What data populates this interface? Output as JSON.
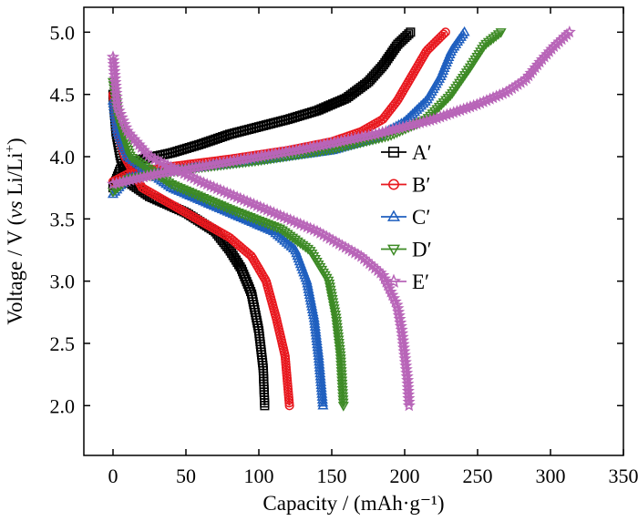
{
  "chart_data": {
    "type": "line",
    "title": "",
    "xlabel": "Capacity / (mAh·g⁻¹)",
    "ylabel": {
      "pre": "Voltage / V (",
      "italic": "vs",
      "post": " Li/Li",
      "sup": "+",
      "close": ")"
    },
    "xlim": [
      -20,
      350
    ],
    "ylim": [
      1.6,
      5.2
    ],
    "xticks": [
      0,
      50,
      100,
      150,
      200,
      250,
      300,
      350
    ],
    "yticks": [
      2.0,
      2.5,
      3.0,
      3.5,
      4.0,
      4.5,
      5.0
    ],
    "ytick_labels": [
      "2.0",
      "2.5",
      "3.0",
      "3.5",
      "4.0",
      "4.5",
      "5.0"
    ],
    "grid": false,
    "legend_position": "center-right",
    "series": [
      {
        "name": "A′",
        "color": "#000000",
        "marker": "square",
        "charge": [
          [
            0,
            3.75
          ],
          [
            5,
            3.9
          ],
          [
            20,
            3.98
          ],
          [
            40,
            4.03
          ],
          [
            60,
            4.1
          ],
          [
            80,
            4.18
          ],
          [
            100,
            4.24
          ],
          [
            120,
            4.3
          ],
          [
            140,
            4.37
          ],
          [
            160,
            4.47
          ],
          [
            175,
            4.6
          ],
          [
            185,
            4.73
          ],
          [
            195,
            4.9
          ],
          [
            204,
            5.0
          ]
        ],
        "discharge": [
          [
            0,
            4.5
          ],
          [
            2,
            4.2
          ],
          [
            5,
            4.0
          ],
          [
            10,
            3.8
          ],
          [
            25,
            3.68
          ],
          [
            50,
            3.55
          ],
          [
            70,
            3.4
          ],
          [
            80,
            3.25
          ],
          [
            88,
            3.1
          ],
          [
            95,
            2.9
          ],
          [
            100,
            2.6
          ],
          [
            103,
            2.3
          ],
          [
            104,
            2.0
          ]
        ]
      },
      {
        "name": "B′",
        "color": "#e8181e",
        "marker": "circle",
        "charge": [
          [
            0,
            3.8
          ],
          [
            10,
            3.86
          ],
          [
            40,
            3.92
          ],
          [
            80,
            3.98
          ],
          [
            120,
            4.05
          ],
          [
            150,
            4.12
          ],
          [
            170,
            4.2
          ],
          [
            185,
            4.3
          ],
          [
            195,
            4.45
          ],
          [
            205,
            4.65
          ],
          [
            215,
            4.85
          ],
          [
            228,
            5.0
          ]
        ],
        "discharge": [
          [
            0,
            4.5
          ],
          [
            3,
            4.2
          ],
          [
            8,
            4.0
          ],
          [
            20,
            3.75
          ],
          [
            50,
            3.55
          ],
          [
            80,
            3.35
          ],
          [
            95,
            3.2
          ],
          [
            105,
            3.0
          ],
          [
            112,
            2.7
          ],
          [
            118,
            2.4
          ],
          [
            121,
            2.0
          ]
        ]
      },
      {
        "name": "C′",
        "color": "#1f5fbf",
        "marker": "triangle-up",
        "charge": [
          [
            0,
            3.7
          ],
          [
            10,
            3.83
          ],
          [
            50,
            3.9
          ],
          [
            100,
            3.97
          ],
          [
            150,
            4.05
          ],
          [
            180,
            4.15
          ],
          [
            200,
            4.28
          ],
          [
            215,
            4.45
          ],
          [
            225,
            4.65
          ],
          [
            232,
            4.85
          ],
          [
            241,
            5.0
          ]
        ],
        "discharge": [
          [
            0,
            4.45
          ],
          [
            3,
            4.2
          ],
          [
            10,
            4.0
          ],
          [
            40,
            3.75
          ],
          [
            80,
            3.55
          ],
          [
            110,
            3.4
          ],
          [
            125,
            3.25
          ],
          [
            133,
            3.0
          ],
          [
            138,
            2.7
          ],
          [
            141,
            2.4
          ],
          [
            144,
            2.0
          ]
        ]
      },
      {
        "name": "D′",
        "color": "#3d8a25",
        "marker": "triangle-down",
        "charge": [
          [
            0,
            3.72
          ],
          [
            10,
            3.82
          ],
          [
            50,
            3.9
          ],
          [
            100,
            3.97
          ],
          [
            150,
            4.06
          ],
          [
            190,
            4.17
          ],
          [
            215,
            4.3
          ],
          [
            232,
            4.5
          ],
          [
            245,
            4.72
          ],
          [
            255,
            4.9
          ],
          [
            266,
            5.0
          ]
        ],
        "discharge": [
          [
            0,
            4.6
          ],
          [
            4,
            4.3
          ],
          [
            12,
            4.0
          ],
          [
            40,
            3.78
          ],
          [
            80,
            3.58
          ],
          [
            115,
            3.42
          ],
          [
            135,
            3.25
          ],
          [
            148,
            3.0
          ],
          [
            153,
            2.7
          ],
          [
            156,
            2.4
          ],
          [
            158,
            2.0
          ]
        ]
      },
      {
        "name": "E′",
        "color": "#b865b8",
        "marker": "star",
        "charge": [
          [
            0,
            3.78
          ],
          [
            30,
            3.86
          ],
          [
            80,
            3.96
          ],
          [
            130,
            4.06
          ],
          [
            180,
            4.18
          ],
          [
            220,
            4.3
          ],
          [
            250,
            4.42
          ],
          [
            270,
            4.52
          ],
          [
            283,
            4.62
          ],
          [
            292,
            4.75
          ],
          [
            302,
            4.88
          ],
          [
            313,
            5.0
          ]
        ],
        "discharge": [
          [
            0,
            4.8
          ],
          [
            3,
            4.4
          ],
          [
            10,
            4.2
          ],
          [
            25,
            4.0
          ],
          [
            60,
            3.8
          ],
          [
            100,
            3.6
          ],
          [
            140,
            3.4
          ],
          [
            170,
            3.2
          ],
          [
            185,
            3.05
          ],
          [
            195,
            2.8
          ],
          [
            198,
            2.6
          ],
          [
            200,
            2.4
          ],
          [
            202,
            2.2
          ],
          [
            203,
            2.0
          ]
        ]
      }
    ]
  }
}
